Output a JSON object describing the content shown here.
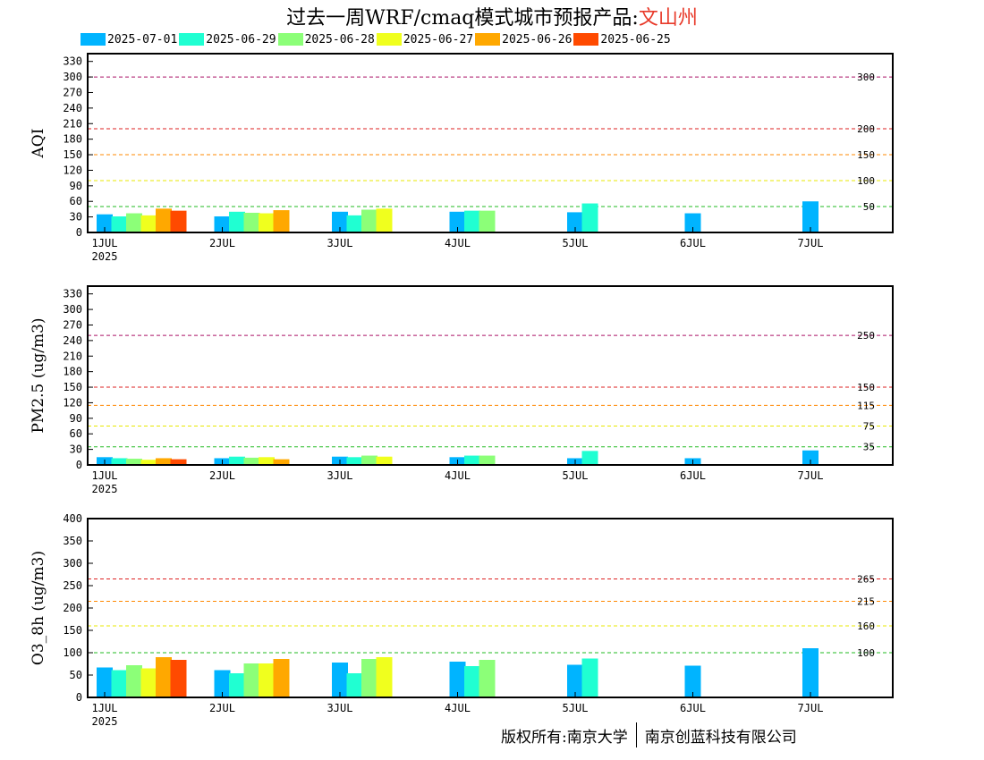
{
  "header": {
    "title_prefix": "过去一周WRF/cmaq模式城市预报产品:",
    "city": "文山州"
  },
  "footer": {
    "left": "版权所有:南京大学",
    "right": "南京创蓝科技有限公司"
  },
  "colors": {
    "series": [
      "#00b4ff",
      "#20ffd2",
      "#8cff78",
      "#f0ff1e",
      "#ffa800",
      "#ff4a00"
    ],
    "threshold_green": "#22bb22",
    "threshold_yellow": "#e8e800",
    "threshold_orange": "#ff8800",
    "threshold_red": "#dd2222",
    "threshold_purple": "#aa1166"
  },
  "chart_data": [
    {
      "type": "bar",
      "ylabel": "AQI",
      "ylim": [
        0,
        345
      ],
      "yticks": [
        0,
        30,
        60,
        90,
        120,
        150,
        180,
        210,
        240,
        270,
        300,
        330
      ],
      "xtick_labels": [
        "1JUL",
        "2JUL",
        "3JUL",
        "4JUL",
        "5JUL",
        "6JUL",
        "7JUL"
      ],
      "xtick_sublabel": "2025",
      "legend": [
        "2025-07-01",
        "2025-06-29",
        "2025-06-28",
        "2025-06-27",
        "2025-06-26",
        "2025-06-25"
      ],
      "thresholds": [
        {
          "value": 50,
          "label": "50",
          "color": "green"
        },
        {
          "value": 100,
          "label": "100",
          "color": "yellow"
        },
        {
          "value": 150,
          "label": "150",
          "color": "orange"
        },
        {
          "value": 200,
          "label": "200",
          "color": "red"
        },
        {
          "value": 300,
          "label": "300",
          "color": "purple"
        }
      ],
      "series": [
        {
          "name": "2025-07-01",
          "values": [
            35,
            31,
            40,
            40,
            39,
            37,
            60
          ]
        },
        {
          "name": "2025-06-29",
          "values": [
            31,
            40,
            33,
            42,
            56,
            null,
            null
          ]
        },
        {
          "name": "2025-06-28",
          "values": [
            37,
            38,
            44,
            42,
            null,
            null,
            null
          ]
        },
        {
          "name": "2025-06-27",
          "values": [
            33,
            37,
            46,
            null,
            null,
            null,
            null
          ]
        },
        {
          "name": "2025-06-26",
          "values": [
            46,
            43,
            null,
            null,
            null,
            null,
            null
          ]
        },
        {
          "name": "2025-06-25",
          "values": [
            42,
            null,
            null,
            null,
            null,
            null,
            null
          ]
        }
      ]
    },
    {
      "type": "bar",
      "ylabel": "PM2.5 (ug/m3)",
      "ylim": [
        0,
        345
      ],
      "yticks": [
        0,
        30,
        60,
        90,
        120,
        150,
        180,
        210,
        240,
        270,
        300,
        330
      ],
      "xtick_labels": [
        "1JUL",
        "2JUL",
        "3JUL",
        "4JUL",
        "5JUL",
        "6JUL",
        "7JUL"
      ],
      "xtick_sublabel": "2025",
      "thresholds": [
        {
          "value": 35,
          "label": "35",
          "color": "green"
        },
        {
          "value": 75,
          "label": "75",
          "color": "yellow"
        },
        {
          "value": 115,
          "label": "115",
          "color": "orange"
        },
        {
          "value": 150,
          "label": "150",
          "color": "red"
        },
        {
          "value": 250,
          "label": "250",
          "color": "purple"
        }
      ],
      "series": [
        {
          "name": "2025-07-01",
          "values": [
            15,
            13,
            16,
            15,
            13,
            13,
            28
          ]
        },
        {
          "name": "2025-06-29",
          "values": [
            13,
            16,
            15,
            18,
            27,
            null,
            null
          ]
        },
        {
          "name": "2025-06-28",
          "values": [
            12,
            14,
            18,
            18,
            null,
            null,
            null
          ]
        },
        {
          "name": "2025-06-27",
          "values": [
            10,
            15,
            16,
            null,
            null,
            null,
            null
          ]
        },
        {
          "name": "2025-06-26",
          "values": [
            13,
            11,
            null,
            null,
            null,
            null,
            null
          ]
        },
        {
          "name": "2025-06-25",
          "values": [
            11,
            null,
            null,
            null,
            null,
            null,
            null
          ]
        }
      ]
    },
    {
      "type": "bar",
      "ylabel": "O3_8h (ug/m3)",
      "ylim": [
        0,
        400
      ],
      "yticks": [
        0,
        50,
        100,
        150,
        200,
        250,
        300,
        350,
        400
      ],
      "xtick_labels": [
        "1JUL",
        "2JUL",
        "3JUL",
        "4JUL",
        "5JUL",
        "6JUL",
        "7JUL"
      ],
      "xtick_sublabel": "2025",
      "thresholds": [
        {
          "value": 100,
          "label": "100",
          "color": "green"
        },
        {
          "value": 160,
          "label": "160",
          "color": "yellow"
        },
        {
          "value": 215,
          "label": "215",
          "color": "orange"
        },
        {
          "value": 265,
          "label": "265",
          "color": "red"
        }
      ],
      "series": [
        {
          "name": "2025-07-01",
          "values": [
            67,
            61,
            78,
            80,
            73,
            71,
            110
          ]
        },
        {
          "name": "2025-06-29",
          "values": [
            61,
            54,
            54,
            70,
            87,
            null,
            null
          ]
        },
        {
          "name": "2025-06-28",
          "values": [
            72,
            76,
            86,
            84,
            null,
            null,
            null
          ]
        },
        {
          "name": "2025-06-27",
          "values": [
            65,
            76,
            90,
            null,
            null,
            null,
            null
          ]
        },
        {
          "name": "2025-06-26",
          "values": [
            90,
            86,
            null,
            null,
            null,
            null,
            null
          ]
        },
        {
          "name": "2025-06-25",
          "values": [
            84,
            null,
            null,
            null,
            null,
            null,
            null
          ]
        }
      ]
    }
  ]
}
